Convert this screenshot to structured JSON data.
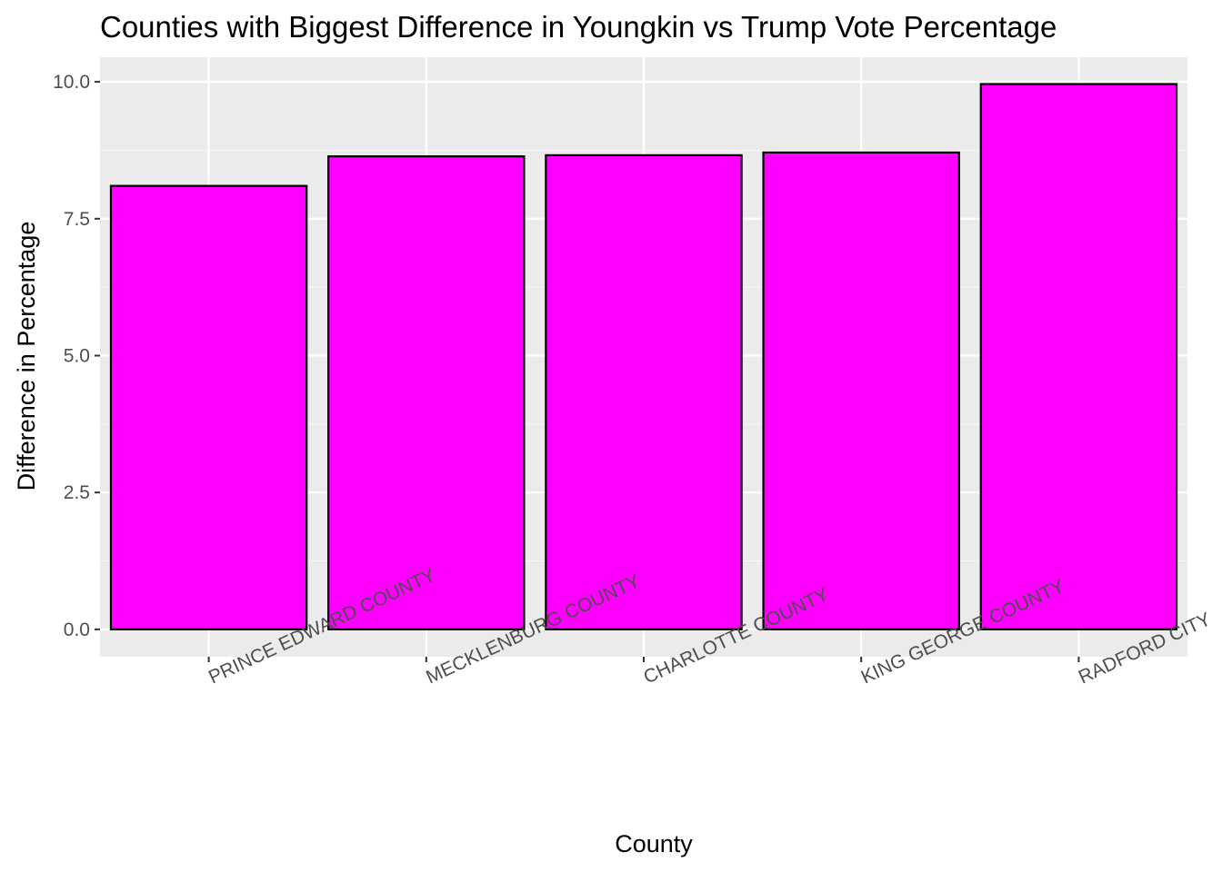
{
  "chart_data": {
    "type": "bar",
    "title": "Counties with Biggest Difference in Youngkin vs Trump Vote Percentage",
    "xlabel": "County",
    "ylabel": "Difference in Percentage",
    "categories": [
      "PRINCE EDWARD COUNTY",
      "MECKLENBURG COUNTY",
      "CHARLOTTE COUNTY",
      "KING GEORGE COUNTY",
      "RADFORD CITY"
    ],
    "values": [
      8.1,
      8.64,
      8.66,
      8.71,
      9.96
    ],
    "ylim": [
      -0.5,
      10.45
    ],
    "yticks": [
      0.0,
      2.5,
      5.0,
      7.5,
      10.0
    ],
    "ytick_labels": [
      "0.0",
      "2.5",
      "5.0",
      "7.5",
      "10.0"
    ],
    "grid": true,
    "legend": "none",
    "colors": {
      "bar_fill": "#FF00FF",
      "bar_stroke": "#000000",
      "panel_background": "#EBEBEB",
      "grid_major": "#FFFFFF",
      "text": "#000000",
      "tick_text": "#4D4D4D"
    }
  }
}
